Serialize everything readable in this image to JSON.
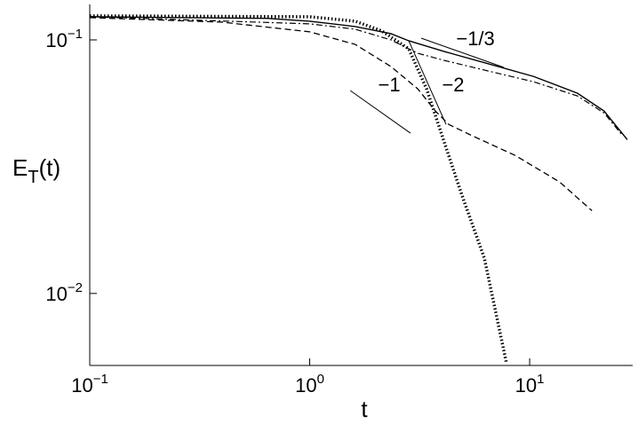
{
  "chart_data": {
    "type": "line",
    "xscale": "log",
    "yscale": "log",
    "xlabel": "t",
    "ylabel": {
      "main": "E",
      "sub": "T",
      "tail": "(t)"
    },
    "xlim": [
      0.1,
      29.4
    ],
    "ylim": [
      0.0052,
      0.138
    ],
    "xticks": [
      {
        "value": 0.1,
        "label": "10",
        "exponent": "−1"
      },
      {
        "value": 1,
        "label": "10",
        "exponent": "0"
      },
      {
        "value": 10,
        "label": "10",
        "exponent": "1"
      }
    ],
    "yticks": [
      {
        "value": 0.1,
        "label": "10",
        "exponent": "−1"
      },
      {
        "value": 0.01,
        "label": "10",
        "exponent": "−2"
      }
    ],
    "series": [
      {
        "color": "#000000",
        "dash": "solid",
        "x": [
          0.1,
          0.25,
          0.64,
          1.0,
          1.61,
          2.34,
          2.82,
          4.09,
          6.52,
          10.4,
          16.5,
          21.8,
          27.8
        ],
        "values": [
          0.1234,
          0.1225,
          0.1216,
          0.1185,
          0.1129,
          0.1058,
          0.0992,
          0.09,
          0.0804,
          0.0718,
          0.0616,
          0.0524,
          0.0404
        ]
      },
      {
        "color": "#000000",
        "dash": "dashdot",
        "x": [
          0.1,
          1.0,
          1.61,
          2.34,
          3.1,
          4.09,
          6.52,
          10.4,
          16.5,
          21.8,
          26.3
        ],
        "values": [
          0.1234,
          0.1157,
          0.1102,
          0.1,
          0.0886,
          0.083,
          0.0753,
          0.0684,
          0.0601,
          0.0515,
          0.0422
        ]
      },
      {
        "color": "#000000",
        "dash": "dashed",
        "x": [
          0.1,
          0.4,
          1.0,
          1.61,
          2.34,
          3.1,
          3.73,
          4.29,
          5.41,
          8.61,
          13.7,
          19.2
        ],
        "values": [
          0.1224,
          0.1175,
          0.1076,
          0.096,
          0.0785,
          0.0641,
          0.0524,
          0.0464,
          0.0421,
          0.035,
          0.0275,
          0.0212
        ]
      },
      {
        "color": "#000000",
        "dash": "dotted",
        "x": [
          0.1,
          1.0,
          1.61,
          2.13,
          2.82,
          3.4,
          4.09,
          4.93,
          6.22,
          7.85
        ],
        "values": [
          0.1244,
          0.1234,
          0.1185,
          0.1084,
          0.0922,
          0.0641,
          0.0395,
          0.0243,
          0.0138,
          0.0053
        ]
      }
    ],
    "reference_lines": [
      {
        "x": [
          3.21,
          7.64
        ],
        "values": [
          0.1016,
          0.0779
        ]
      },
      {
        "x": [
          1.53,
          2.87
        ],
        "values": [
          0.0631,
          0.0429
        ]
      },
      {
        "x": [
          2.82,
          4.17
        ],
        "values": [
          0.0992,
          0.0464
        ]
      }
    ],
    "annotations": [
      {
        "text": "−1/3",
        "x": 5.67,
        "y": 0.1016
      },
      {
        "text": "−1",
        "x": 2.3,
        "y": 0.0669
      },
      {
        "text": "−2",
        "x": 4.49,
        "y": 0.0669
      }
    ]
  }
}
